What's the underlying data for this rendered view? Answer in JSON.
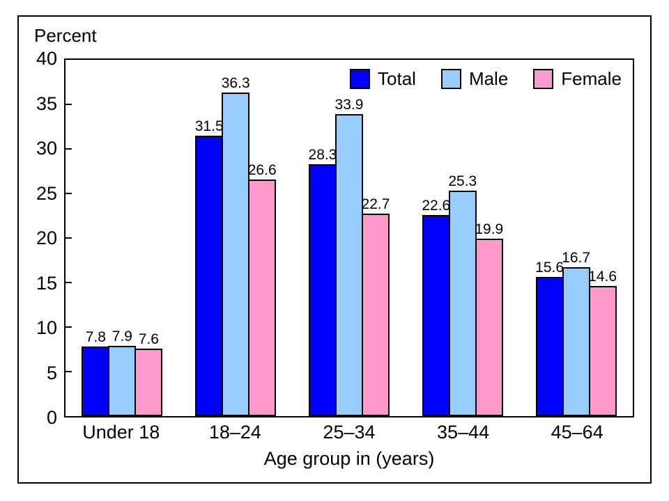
{
  "chart_data": {
    "type": "bar",
    "title": "",
    "ylabel": "Percent",
    "xlabel": "Age group in (years)",
    "ylim": [
      0,
      40
    ],
    "yticks": [
      0,
      5,
      10,
      15,
      20,
      25,
      30,
      35,
      40
    ],
    "categories": [
      "Under 18",
      "18–24",
      "25–34",
      "35–44",
      "45–64"
    ],
    "series": [
      {
        "name": "Total",
        "color": "#0000FF",
        "values": [
          7.8,
          31.5,
          28.3,
          22.6,
          15.6
        ]
      },
      {
        "name": "Male",
        "color": "#99CCFF",
        "values": [
          7.9,
          36.3,
          33.9,
          25.3,
          16.7
        ]
      },
      {
        "name": "Female",
        "color": "#FF99CC",
        "values": [
          7.6,
          26.6,
          22.7,
          19.9,
          14.6
        ]
      }
    ],
    "value_labels_shown": true,
    "legend_position": "top-right-inside",
    "grid": false,
    "bar_outline_color": "#000000",
    "frame_color": "#000000"
  }
}
